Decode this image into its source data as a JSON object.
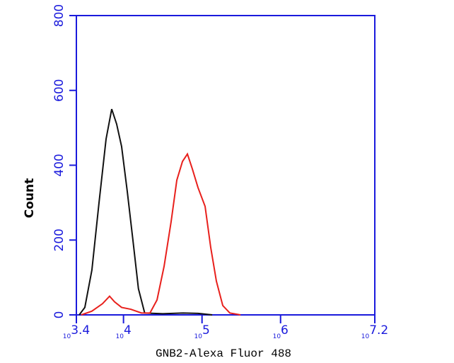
{
  "chart_data": {
    "type": "line",
    "log_x": true,
    "xlabel": "GNB2-Alexa Fluor 488",
    "ylabel": "Count",
    "xlim": [
      2511.886,
      15848931.925
    ],
    "xticks": [
      {
        "value": 2511.886,
        "label": "10^3.4"
      },
      {
        "value": 10000,
        "label": "10^4"
      },
      {
        "value": 100000,
        "label": "10^5"
      },
      {
        "value": 1000000,
        "label": "10^6"
      },
      {
        "value": 15848931.925,
        "label": "10^7.2"
      }
    ],
    "ylim": [
      0,
      800
    ],
    "yticks": [
      0,
      200,
      400,
      600,
      800
    ],
    "axis_color": "#1a1adc",
    "series": [
      {
        "color": "#111111",
        "x": [
          2730,
          3220,
          3960,
          4880,
          6000,
          7080,
          8180,
          9460,
          11170,
          13180,
          15490,
          18620,
          31620,
          57540,
          89130,
          134900
        ],
        "values": [
          0,
          20,
          120,
          300,
          470,
          550,
          510,
          450,
          330,
          200,
          70,
          5,
          3,
          5,
          4,
          0
        ]
      },
      {
        "color": "#e8201c",
        "x": [
          2904,
          3960,
          5410,
          6650,
          7690,
          9460,
          12390,
          16940,
          21730,
          26730,
          32890,
          40460,
          47750,
          56360,
          65160,
          75340,
          88920,
          109400,
          129100,
          152400,
          183700,
          225900,
          309000
        ],
        "values": [
          0,
          10,
          30,
          50,
          35,
          20,
          15,
          5,
          5,
          40,
          130,
          250,
          360,
          410,
          430,
          390,
          340,
          290,
          180,
          90,
          25,
          5,
          0
        ]
      }
    ]
  }
}
